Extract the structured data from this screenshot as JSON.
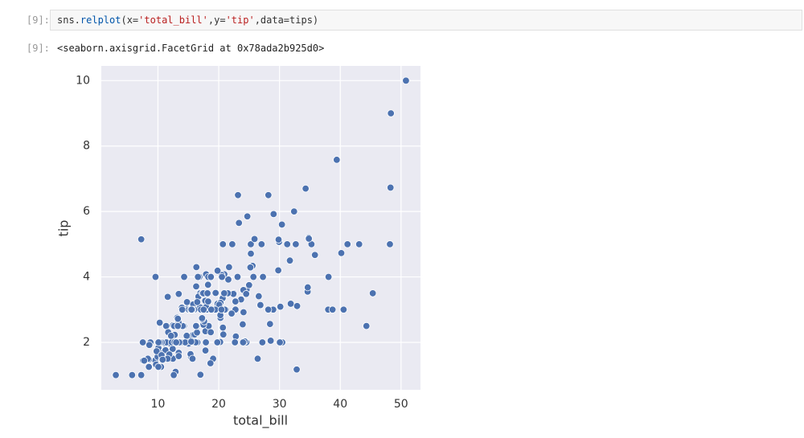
{
  "input": {
    "prompt": "[9]:",
    "code": [
      {
        "text": "sns.",
        "color": "#333333"
      },
      {
        "text": "relplot",
        "color": "#0055aa"
      },
      {
        "text": "(x=",
        "color": "#333333"
      },
      {
        "text": "'total_bill'",
        "color": "#ba2121"
      },
      {
        "text": ",y=",
        "color": "#333333"
      },
      {
        "text": "'tip'",
        "color": "#ba2121"
      },
      {
        "text": ",data=tips)",
        "color": "#333333"
      }
    ]
  },
  "output": {
    "prompt": "[9]:",
    "text": "<seaborn.axisgrid.FacetGrid at 0x78ada2b925d0>"
  },
  "chart_data": {
    "type": "scatter",
    "xlabel": "total_bill",
    "ylabel": "tip",
    "color": "#4c72b0",
    "background": "#eaeaf2",
    "grid": true,
    "xlim": [
      0.68,
      53.2
    ],
    "ylim": [
      0.55,
      10.45
    ],
    "xticks": [
      10,
      20,
      30,
      40,
      50
    ],
    "yticks": [
      2,
      4,
      6,
      8,
      10
    ],
    "x": [
      16.99,
      10.34,
      21.01,
      23.68,
      24.59,
      25.29,
      8.77,
      26.88,
      15.04,
      14.78,
      10.27,
      35.26,
      15.42,
      18.43,
      14.83,
      21.58,
      10.33,
      16.29,
      16.97,
      20.65,
      17.92,
      20.29,
      15.77,
      39.42,
      19.82,
      17.81,
      13.37,
      12.69,
      21.7,
      19.65,
      9.55,
      18.35,
      15.06,
      20.69,
      17.78,
      24.06,
      16.31,
      16.93,
      18.69,
      31.27,
      16.04,
      17.46,
      13.94,
      9.68,
      30.4,
      18.29,
      22.23,
      32.4,
      28.55,
      18.04,
      12.54,
      10.29,
      34.81,
      9.94,
      25.56,
      19.49,
      38.01,
      26.41,
      11.24,
      48.27,
      20.29,
      13.81,
      11.02,
      18.29,
      17.59,
      20.08,
      16.45,
      3.07,
      20.23,
      15.01,
      12.02,
      17.07,
      26.86,
      25.28,
      14.73,
      10.51,
      17.92,
      27.2,
      22.76,
      17.29,
      19.44,
      16.66,
      10.07,
      32.68,
      15.98,
      34.83,
      13.03,
      18.28,
      24.71,
      21.16,
      28.97,
      22.49,
      5.75,
      16.32,
      22.75,
      40.17,
      27.28,
      12.03,
      21.01,
      12.46,
      11.35,
      15.38,
      44.3,
      22.42,
      20.92,
      15.36,
      20.49,
      25.21,
      18.24,
      14.31,
      14.0,
      7.25,
      38.07,
      23.95,
      25.71,
      17.31,
      29.93,
      10.65,
      12.43,
      24.08,
      11.69,
      13.42,
      14.26,
      15.95,
      12.48,
      29.8,
      8.52,
      14.52,
      11.38,
      22.82,
      19.08,
      20.27,
      11.17,
      12.26,
      18.26,
      8.51,
      10.33,
      14.15,
      16.0,
      13.16,
      17.47,
      34.3,
      41.19,
      27.05,
      16.43,
      8.35,
      18.64,
      11.87,
      9.78,
      7.51,
      14.07,
      13.13,
      17.26,
      24.55,
      19.77,
      29.85,
      48.17,
      25.0,
      13.39,
      16.49,
      21.5,
      12.66,
      16.21,
      13.81,
      17.51,
      24.52,
      20.76,
      31.71,
      10.59,
      10.63,
      50.81,
      15.81,
      7.25,
      31.85,
      16.82,
      32.9,
      17.89,
      14.48,
      9.6,
      34.63,
      34.65,
      23.33,
      45.35,
      23.17,
      40.55,
      20.69,
      20.9,
      30.46,
      18.15,
      23.1,
      15.69,
      19.81,
      28.44,
      15.48,
      16.58,
      7.56,
      10.34,
      43.11,
      13.0,
      13.51,
      18.71,
      12.74,
      13.0,
      16.4,
      20.53,
      16.47,
      26.59,
      38.73,
      24.27,
      12.76,
      30.06,
      25.89,
      48.33,
      13.27,
      28.17,
      12.9,
      28.15,
      11.59,
      7.74,
      30.14,
      12.16,
      13.42,
      8.58,
      15.98,
      13.42,
      16.27,
      10.09,
      20.45,
      13.28,
      22.12,
      24.01,
      15.69,
      11.61,
      10.77,
      15.53,
      10.07,
      12.6,
      32.83,
      35.83,
      29.03,
      27.18,
      22.67,
      17.82,
      18.78
    ],
    "values": [
      1.01,
      1.66,
      3.5,
      3.31,
      3.61,
      4.71,
      2.0,
      3.12,
      1.96,
      3.23,
      1.71,
      5.0,
      1.57,
      3.0,
      3.02,
      3.92,
      1.67,
      3.71,
      3.5,
      3.35,
      4.08,
      2.75,
      2.23,
      7.58,
      3.18,
      2.34,
      2.0,
      2.0,
      4.3,
      3.0,
      1.45,
      2.5,
      3.0,
      2.45,
      3.27,
      3.6,
      2.0,
      3.07,
      2.31,
      5.0,
      2.24,
      2.54,
      3.06,
      1.32,
      5.6,
      3.0,
      5.0,
      6.0,
      2.05,
      3.0,
      2.5,
      2.6,
      5.2,
      1.56,
      4.34,
      3.51,
      3.0,
      1.5,
      1.76,
      6.73,
      3.21,
      2.0,
      1.98,
      3.76,
      2.64,
      3.15,
      2.47,
      1.0,
      2.01,
      2.09,
      1.97,
      3.0,
      3.14,
      5.0,
      2.2,
      1.25,
      3.08,
      4.0,
      3.0,
      2.71,
      3.0,
      3.4,
      1.83,
      5.0,
      2.03,
      5.17,
      2.0,
      4.0,
      5.85,
      3.0,
      3.0,
      3.5,
      1.0,
      4.3,
      3.25,
      4.73,
      4.0,
      1.5,
      3.0,
      1.5,
      2.5,
      3.0,
      2.5,
      3.48,
      4.08,
      1.64,
      4.06,
      4.29,
      3.76,
      4.0,
      3.0,
      1.0,
      4.0,
      2.55,
      4.0,
      3.5,
      5.07,
      1.5,
      1.8,
      2.92,
      2.31,
      1.68,
      2.5,
      2.0,
      2.52,
      4.2,
      1.48,
      2.0,
      2.0,
      2.18,
      1.5,
      2.83,
      1.5,
      2.0,
      3.25,
      1.25,
      2.0,
      2.0,
      2.0,
      2.75,
      3.5,
      6.7,
      5.0,
      5.0,
      2.3,
      1.5,
      1.36,
      1.63,
      1.73,
      2.0,
      2.5,
      2.0,
      2.74,
      2.0,
      2.0,
      5.14,
      5.0,
      3.75,
      2.61,
      2.0,
      3.5,
      2.5,
      2.0,
      2.0,
      3.0,
      3.48,
      2.24,
      4.5,
      1.61,
      2.0,
      10.0,
      3.16,
      5.15,
      3.18,
      4.0,
      3.11,
      2.0,
      2.0,
      4.0,
      3.55,
      3.68,
      5.65,
      3.5,
      6.5,
      3.0,
      5.0,
      3.5,
      2.0,
      3.5,
      4.0,
      1.5,
      4.19,
      2.56,
      2.02,
      4.0,
      1.44,
      2.0,
      5.0,
      2.0,
      2.0,
      4.0,
      2.01,
      2.0,
      2.5,
      4.0,
      3.23,
      3.41,
      3.0,
      2.03,
      2.23,
      2.0,
      5.16,
      9.0,
      2.5,
      6.5,
      1.1,
      3.0,
      1.5,
      1.44,
      3.09,
      2.2,
      3.48,
      1.92,
      3.0,
      1.58,
      2.5,
      2.0,
      3.0,
      2.72,
      2.88,
      2.0,
      3.0,
      3.39,
      1.47,
      3.0,
      1.25,
      1.0,
      1.17,
      4.67,
      5.92,
      2.0,
      2.0,
      1.75,
      3.0
    ]
  }
}
